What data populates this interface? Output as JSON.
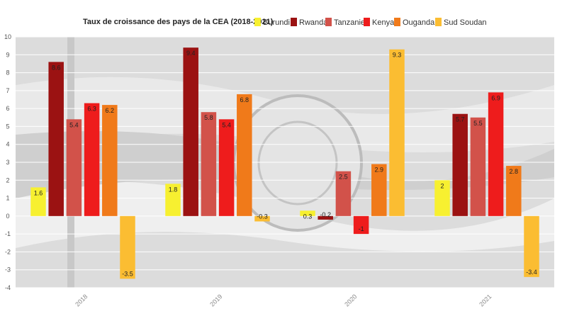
{
  "chart_data": {
    "type": "bar",
    "title": "Taux de croissance des pays de la CEA (2018-2021)",
    "categories": [
      "2018",
      "2019",
      "2020",
      "2021"
    ],
    "series": [
      {
        "name": "Burundi",
        "color": "#f7f030",
        "values": [
          1.6,
          1.8,
          0.3,
          2
        ]
      },
      {
        "name": "Rwanda",
        "color": "#9b1212",
        "values": [
          8.6,
          9.4,
          -0.2,
          5.7
        ]
      },
      {
        "name": "Tanzanie",
        "color": "#d2524a",
        "values": [
          5.4,
          5.8,
          2.5,
          5.5
        ]
      },
      {
        "name": "Kenya",
        "color": "#ee1c1c",
        "values": [
          6.3,
          5.4,
          -1,
          6.9
        ]
      },
      {
        "name": "Ouganda",
        "color": "#f07a1a",
        "values": [
          6.2,
          6.8,
          2.9,
          2.8
        ]
      },
      {
        "name": "Sud Soudan",
        "color": "#fbbd32",
        "values": [
          -3.5,
          -0.3,
          9.3,
          -3.4
        ]
      }
    ],
    "ylim": [
      -4,
      10
    ],
    "yticks": [
      "-4",
      "-3",
      "-2",
      "-1",
      "0",
      "1",
      "2",
      "3",
      "4",
      "5",
      "6",
      "7",
      "8",
      "9",
      "10"
    ],
    "grid": true,
    "legend_position": "top"
  }
}
